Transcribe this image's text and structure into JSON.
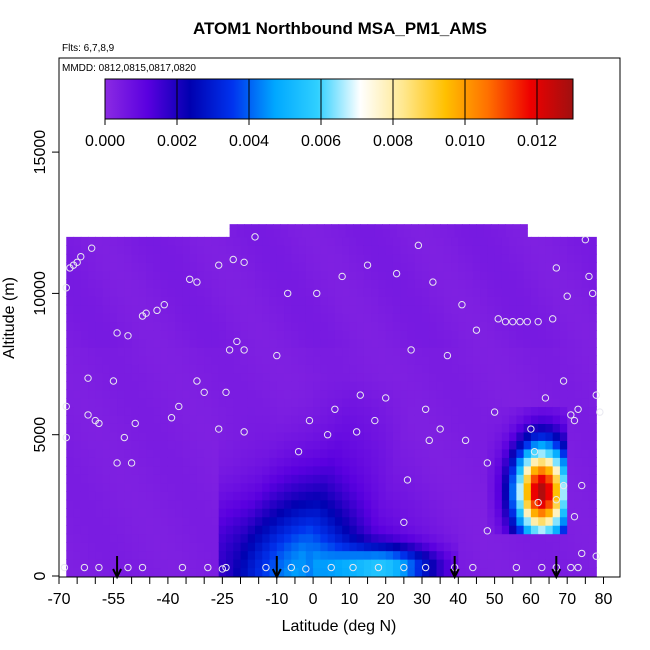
{
  "chart_data": {
    "type": "heatmap",
    "title": "ATOM1 Northbound MSA_PM1_AMS",
    "subtitle_flights": "Flts: 6,7,8,9",
    "subtitle_dates": "MMDD: 0812,0815,0817,0820",
    "xlabel": "Latitude (deg N)",
    "ylabel": "Altitude (m)",
    "xlim": [
      -70,
      82
    ],
    "ylim": [
      0,
      17500
    ],
    "x_ticks": [
      "-70",
      "-55",
      "-40",
      "-25",
      "-10",
      "0",
      "10",
      "20",
      "30",
      "40",
      "50",
      "60",
      "70",
      "80"
    ],
    "x_tick_values": [
      -70,
      -55,
      -40,
      -25,
      -10,
      0,
      10,
      20,
      30,
      40,
      50,
      60,
      70,
      80
    ],
    "y_minor_ticks": [
      -65,
      -60,
      -50,
      -45,
      -35,
      -30,
      -20,
      -15,
      -5,
      5,
      15,
      25,
      35,
      45,
      55,
      65,
      75
    ],
    "y_ticks": [
      "0",
      "5000",
      "10000",
      "15000"
    ],
    "y_tick_values": [
      0,
      5000,
      10000,
      15000
    ],
    "colorbar": {
      "ticks": [
        "0.000",
        "0.002",
        "0.004",
        "0.006",
        "0.008",
        "0.010",
        "0.012"
      ],
      "tick_values": [
        0,
        0.002,
        0.004,
        0.006,
        0.008,
        0.01,
        0.012
      ],
      "range": [
        0,
        0.013
      ],
      "colors": [
        "#8b2be2",
        "#5a00e0",
        "#0000b0",
        "#0033ee",
        "#00a8ff",
        "#30d0ff",
        "#ffffff",
        "#ffe890",
        "#ffc000",
        "#ff7000",
        "#ee0000",
        "#a01010"
      ]
    },
    "background_value": 0.0003,
    "data_extent": [
      {
        "lat_min": -68,
        "lat_max": 78,
        "alt_min": 0,
        "alt_max": 12000
      },
      {
        "lat_min": -23,
        "lat_max": 58,
        "alt_min": 12000,
        "alt_max": 12450
      }
    ],
    "anomalies": [
      {
        "lat_min": 48,
        "lat_max": 70,
        "alt_min": 1500,
        "alt_max": 6000,
        "lat_center": 63,
        "alt_center": 3000,
        "peak": 0.0125
      },
      {
        "lat_min": -25,
        "lat_max": 45,
        "alt_min": 0,
        "alt_max": 7000,
        "lat_center": -5,
        "alt_center": 300,
        "peak": 0.0028
      },
      {
        "lat_min": 0,
        "lat_max": 40,
        "alt_min": 0,
        "alt_max": 2000,
        "lat_center": 20,
        "alt_center": 300,
        "peak": 0.0045
      }
    ],
    "sample_points": [
      [
        -68.5,
        300
      ],
      [
        -63,
        300
      ],
      [
        -59,
        300
      ],
      [
        -51,
        300
      ],
      [
        -47,
        300
      ],
      [
        -36,
        300
      ],
      [
        -29,
        300
      ],
      [
        -25,
        250
      ],
      [
        -24,
        300
      ],
      [
        -13,
        300
      ],
      [
        -6,
        300
      ],
      [
        -2,
        250
      ],
      [
        5,
        300
      ],
      [
        11,
        300
      ],
      [
        18,
        300
      ],
      [
        25,
        300
      ],
      [
        31,
        300
      ],
      [
        39,
        300
      ],
      [
        44,
        300
      ],
      [
        56,
        300
      ],
      [
        63,
        300
      ],
      [
        67,
        300
      ],
      [
        71,
        300
      ],
      [
        73,
        300
      ],
      [
        78,
        700
      ],
      [
        74,
        800
      ],
      [
        -68,
        10200
      ],
      [
        -67,
        10900
      ],
      [
        -66,
        11000
      ],
      [
        -65,
        11100
      ],
      [
        -64,
        11300
      ],
      [
        -61,
        11600
      ],
      [
        -68,
        6000
      ],
      [
        -68,
        4900
      ],
      [
        -62,
        7000
      ],
      [
        -62,
        5700
      ],
      [
        -60,
        5500
      ],
      [
        -59,
        5400
      ],
      [
        -55,
        6900
      ],
      [
        -54,
        8600
      ],
      [
        -51,
        8500
      ],
      [
        -49,
        5400
      ],
      [
        -52,
        4900
      ],
      [
        -54,
        4000
      ],
      [
        -50,
        4000
      ],
      [
        -47,
        9200
      ],
      [
        -46,
        9300
      ],
      [
        -43,
        9400
      ],
      [
        -41,
        9600
      ],
      [
        -34,
        10500
      ],
      [
        -32,
        10400
      ],
      [
        -39,
        5600
      ],
      [
        -37,
        6000
      ],
      [
        -32,
        6900
      ],
      [
        -30,
        6500
      ],
      [
        -26,
        11000
      ],
      [
        -22,
        11200
      ],
      [
        -19,
        11100
      ],
      [
        -23,
        8000
      ],
      [
        -21,
        8300
      ],
      [
        -19,
        8000
      ],
      [
        -26,
        5200
      ],
      [
        -24,
        6500
      ],
      [
        -19,
        5100
      ],
      [
        -16,
        12000
      ],
      [
        -10,
        7800
      ],
      [
        -7,
        10000
      ],
      [
        -4,
        4400
      ],
      [
        -1,
        5500
      ],
      [
        1,
        10000
      ],
      [
        4,
        5000
      ],
      [
        6,
        5900
      ],
      [
        8,
        10600
      ],
      [
        12,
        5100
      ],
      [
        13,
        6400
      ],
      [
        15,
        11000
      ],
      [
        17,
        5500
      ],
      [
        20,
        6300
      ],
      [
        23,
        10700
      ],
      [
        26,
        3400
      ],
      [
        25,
        1900
      ],
      [
        27,
        8000
      ],
      [
        29,
        11700
      ],
      [
        31,
        5900
      ],
      [
        32,
        4800
      ],
      [
        33,
        10400
      ],
      [
        35,
        5200
      ],
      [
        37,
        7800
      ],
      [
        41,
        9600
      ],
      [
        42,
        4800
      ],
      [
        45,
        8700
      ],
      [
        48,
        4000
      ],
      [
        48,
        1600
      ],
      [
        50,
        5800
      ],
      [
        51,
        9100
      ],
      [
        53,
        9000
      ],
      [
        55,
        9000
      ],
      [
        57,
        9000
      ],
      [
        59,
        9000
      ],
      [
        62,
        9000
      ],
      [
        64,
        6300
      ],
      [
        66,
        9100
      ],
      [
        67,
        10900
      ],
      [
        69,
        6900
      ],
      [
        70,
        9900
      ],
      [
        71,
        5700
      ],
      [
        72,
        5500
      ],
      [
        73,
        5900
      ],
      [
        74,
        3200
      ],
      [
        75,
        11900
      ],
      [
        76,
        10600
      ],
      [
        77,
        10000
      ],
      [
        78,
        6400
      ],
      [
        79,
        5800
      ],
      [
        60,
        5200
      ],
      [
        61,
        4400
      ],
      [
        62,
        2600
      ],
      [
        67,
        2700
      ],
      [
        69,
        3200
      ],
      [
        72,
        2100
      ]
    ],
    "arrows_lat": [
      -54,
      -10,
      39,
      67
    ]
  }
}
